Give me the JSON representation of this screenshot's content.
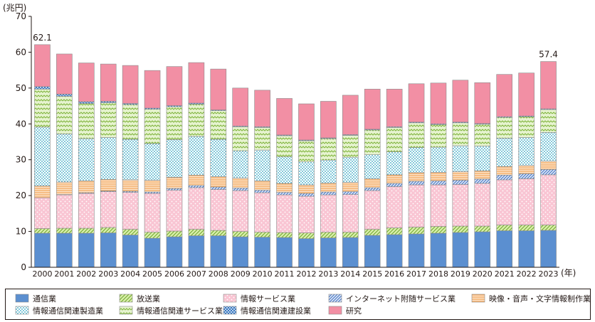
{
  "chart_data": {
    "type": "bar",
    "stacked": true,
    "unit_label": "(兆円)",
    "x_unit_label": "(年)",
    "ylim": [
      0,
      70
    ],
    "yticks": [
      0,
      10,
      20,
      30,
      40,
      50,
      60,
      70
    ],
    "grid": false,
    "legend_position": "bottom",
    "categories": [
      "2000",
      "2001",
      "2002",
      "2003",
      "2004",
      "2005",
      "2006",
      "2007",
      "2008",
      "2009",
      "2010",
      "2011",
      "2012",
      "2013",
      "2014",
      "2015",
      "2016",
      "2017",
      "2018",
      "2019",
      "2020",
      "2021",
      "2022",
      "2023"
    ],
    "annotations": [
      {
        "category": "2000",
        "text": "62.1"
      },
      {
        "category": "2023",
        "text": "57.4"
      }
    ],
    "series": [
      {
        "name": "通信業",
        "color": "#5B8FD0",
        "pattern": "solid",
        "values": [
          9.5,
          9.5,
          9.5,
          9.6,
          9.0,
          8.1,
          8.5,
          8.8,
          8.8,
          8.5,
          8.4,
          8.3,
          8.0,
          8.2,
          8.3,
          8.9,
          9.1,
          9.3,
          9.5,
          9.7,
          9.9,
          10.2,
          10.2,
          10.3
        ]
      },
      {
        "name": "放送業",
        "color": "#B5D96A",
        "pattern": "diag",
        "values": [
          1.3,
          1.4,
          1.4,
          1.5,
          1.6,
          1.7,
          1.6,
          1.8,
          1.5,
          1.5,
          1.4,
          1.4,
          1.6,
          1.6,
          1.5,
          1.7,
          1.9,
          1.9,
          1.9,
          1.8,
          1.6,
          1.6,
          1.6,
          1.5
        ]
      },
      {
        "name": "情報サービス業",
        "color": "#F7A8C0",
        "pattern": "dots",
        "values": [
          8.6,
          9.3,
          9.7,
          10.0,
          10.3,
          10.8,
          11.4,
          11.6,
          11.4,
          11.4,
          11.0,
          10.5,
          10.2,
          10.4,
          10.5,
          10.8,
          11.5,
          11.8,
          11.6,
          11.6,
          11.9,
          12.6,
          12.9,
          14.0
        ]
      },
      {
        "name": "インターネット附随サービス業",
        "color": "#6E94D6",
        "pattern": "hatch",
        "values": [
          0.0,
          0.1,
          0.2,
          0.2,
          0.3,
          0.4,
          0.5,
          0.6,
          0.7,
          0.7,
          0.7,
          0.7,
          0.8,
          0.8,
          0.8,
          0.8,
          0.9,
          1.0,
          1.1,
          1.2,
          1.2,
          1.3,
          1.4,
          1.5
        ]
      },
      {
        "name": "映像・音声・文字情報制作業",
        "color": "#F8B16E",
        "pattern": "hlines",
        "values": [
          3.3,
          3.5,
          3.3,
          3.2,
          3.2,
          3.3,
          3.1,
          2.9,
          2.9,
          2.8,
          2.6,
          2.5,
          2.4,
          2.5,
          2.6,
          2.5,
          2.4,
          2.4,
          2.4,
          2.4,
          2.3,
          2.4,
          2.3,
          2.3
        ]
      },
      {
        "name": "情報通信関連製造業",
        "color": "#3EB2C8",
        "pattern": "bluedots",
        "values": [
          16.4,
          13.4,
          11.8,
          11.7,
          11.3,
          10.2,
          10.5,
          10.8,
          10.4,
          7.6,
          8.6,
          7.4,
          6.4,
          6.4,
          7.0,
          6.7,
          6.4,
          7.0,
          7.0,
          7.2,
          6.9,
          7.9,
          7.8,
          8.0
        ]
      },
      {
        "name": "情報通信関連サービス業",
        "color": "#8CC63F",
        "pattern": "zigzag",
        "values": [
          10.6,
          10.5,
          9.8,
          9.7,
          9.7,
          9.6,
          9.2,
          9.0,
          8.0,
          6.7,
          6.3,
          5.9,
          5.9,
          6.0,
          6.1,
          6.9,
          6.8,
          6.9,
          6.3,
          6.4,
          6.1,
          5.8,
          5.8,
          6.4
        ]
      },
      {
        "name": "情報通信関連建設業",
        "color": "#4A88C7",
        "pattern": "checker",
        "values": [
          0.7,
          0.6,
          0.5,
          0.4,
          0.3,
          0.3,
          0.3,
          0.3,
          0.2,
          0.2,
          0.2,
          0.2,
          0.2,
          0.2,
          0.2,
          0.2,
          0.2,
          0.2,
          0.2,
          0.2,
          0.2,
          0.2,
          0.2,
          0.2
        ]
      },
      {
        "name": "研究",
        "color": "#F28FA4",
        "pattern": "solid",
        "values": [
          11.7,
          11.2,
          10.8,
          10.4,
          10.6,
          10.5,
          10.9,
          11.3,
          11.4,
          10.6,
          10.2,
          10.2,
          10.1,
          10.2,
          11.0,
          11.2,
          10.5,
          10.7,
          11.4,
          11.7,
          11.4,
          11.8,
          12.0,
          13.2
        ]
      }
    ]
  }
}
